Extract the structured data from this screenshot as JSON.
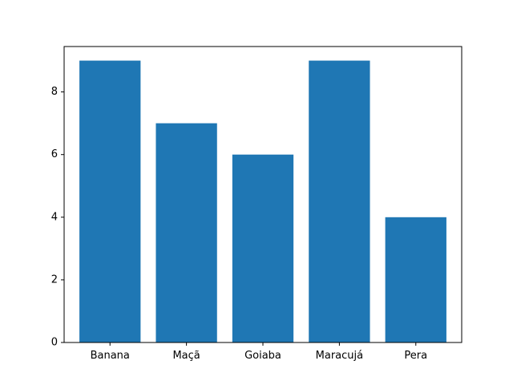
{
  "chart_data": {
    "type": "bar",
    "categories": [
      "Banana",
      "Maçã",
      "Goiaba",
      "Maracujá",
      "Pera"
    ],
    "values": [
      9,
      7,
      6,
      9,
      4
    ],
    "title": "",
    "xlabel": "",
    "ylabel": "",
    "ylim": [
      0,
      9.45
    ],
    "yticks": [
      0,
      2,
      4,
      6,
      8
    ],
    "grid": false,
    "bar_color": "#1f77b4"
  }
}
